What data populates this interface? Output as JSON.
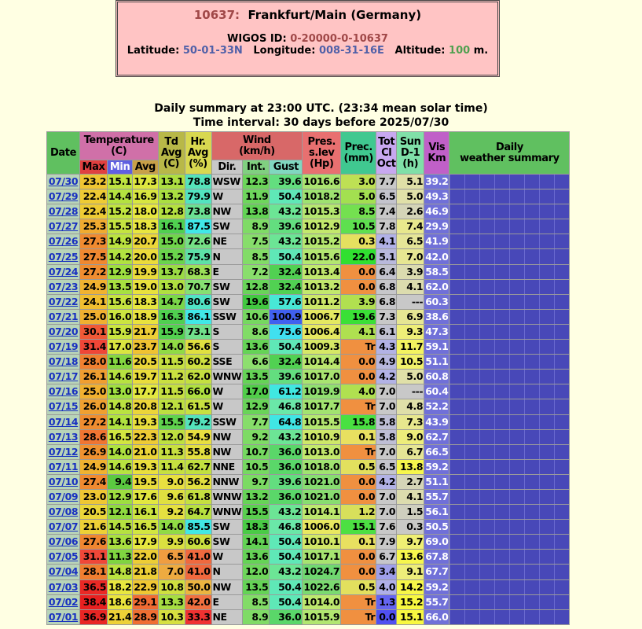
{
  "header": {
    "station_id": "10637:",
    "station_name": "Frankfurt/Main (Germany)",
    "wigos_label": "WIGOS ID:",
    "wigos_id": "0-20000-0-10637",
    "lat_label": "Latitude:",
    "lat": "50-01-33N",
    "lon_label": "Longitude:",
    "lon": "008-31-16E",
    "alt_label": "Altitude:",
    "alt": "100",
    "alt_unit": "m."
  },
  "summary": {
    "line1": "Daily summary at 23:00 UTC. (23:34 mean solar time)",
    "line2": "Time interval: 30 days before 2025/07/30"
  },
  "table": {
    "headers": {
      "date": "Date",
      "temperature": "Temperature\n(C)",
      "max": "Max",
      "min": "Min",
      "avg": "Avg",
      "td": "Td\nAvg\n(C)",
      "hr": "Hr.\nAvg\n(%)",
      "wind": "Wind\n(km/h)",
      "dir": "Dir.",
      "int": "Int.",
      "gust": "Gust",
      "pres": "Pres.\ns.lev\n(Hp)",
      "prec": "Prec.\n(mm)",
      "cloud": "Tot\nCl\nOct",
      "sun": "Sun\nD-1\n(h)",
      "vis": "Vis\nKm",
      "weather": "Daily\nweather summary"
    },
    "rows": [
      [
        "07/30",
        "23.2",
        "15.1",
        "17.3",
        "13.1",
        "78.8",
        "WSW",
        "12.3",
        "39.6",
        "1016.6",
        "3.0",
        "7.7",
        "5.1",
        "39.2"
      ],
      [
        "07/29",
        "22.4",
        "14.4",
        "16.9",
        "13.2",
        "79.9",
        "W",
        "11.9",
        "50.4",
        "1018.2",
        "5.0",
        "6.5",
        "5.0",
        "49.3"
      ],
      [
        "07/28",
        "22.4",
        "15.2",
        "18.0",
        "12.8",
        "73.8",
        "NW",
        "13.8",
        "43.2",
        "1015.3",
        "8.5",
        "7.4",
        "2.6",
        "46.9"
      ],
      [
        "07/27",
        "25.3",
        "15.5",
        "18.3",
        "16.1",
        "87.5",
        "SW",
        "8.9",
        "39.6",
        "1012.9",
        "10.5",
        "7.8",
        "7.4",
        "29.9"
      ],
      [
        "07/26",
        "27.3",
        "14.9",
        "20.7",
        "15.0",
        "72.6",
        "NE",
        "7.5",
        "43.2",
        "1015.2",
        "0.3",
        "4.1",
        "6.5",
        "41.9"
      ],
      [
        "07/25",
        "27.5",
        "14.2",
        "20.0",
        "15.2",
        "75.9",
        "N",
        "8.5",
        "50.4",
        "1015.6",
        "22.0",
        "5.1",
        "7.0",
        "42.0"
      ],
      [
        "07/24",
        "27.2",
        "12.9",
        "19.9",
        "13.7",
        "68.3",
        "E",
        "7.2",
        "32.4",
        "1013.4",
        "0.0",
        "6.4",
        "3.9",
        "58.5"
      ],
      [
        "07/23",
        "24.9",
        "13.5",
        "19.0",
        "13.0",
        "70.7",
        "SW",
        "12.8",
        "32.4",
        "1013.2",
        "0.0",
        "6.8",
        "4.1",
        "62.0"
      ],
      [
        "07/22",
        "24.1",
        "15.6",
        "18.3",
        "14.7",
        "80.6",
        "SW",
        "19.6",
        "57.6",
        "1011.2",
        "3.9",
        "6.8",
        "---",
        "60.3"
      ],
      [
        "07/21",
        "25.0",
        "16.0",
        "18.9",
        "16.3",
        "86.1",
        "SSW",
        "10.6",
        "100.9",
        "1006.7",
        "19.6",
        "7.3",
        "6.9",
        "38.6"
      ],
      [
        "07/20",
        "30.1",
        "15.9",
        "21.7",
        "15.9",
        "73.1",
        "S",
        "8.6",
        "75.6",
        "1006.4",
        "4.1",
        "6.1",
        "9.3",
        "47.3"
      ],
      [
        "07/19",
        "31.4",
        "17.0",
        "23.7",
        "14.0",
        "56.6",
        "S",
        "13.6",
        "50.4",
        "1009.3",
        "Tr",
        "4.3",
        "11.7",
        "59.1"
      ],
      [
        "07/18",
        "28.0",
        "11.6",
        "20.5",
        "11.5",
        "60.2",
        "SSE",
        "6.6",
        "32.4",
        "1014.4",
        "0.0",
        "4.9",
        "10.5",
        "51.1"
      ],
      [
        "07/17",
        "26.1",
        "14.6",
        "19.7",
        "11.2",
        "62.0",
        "WNW",
        "13.5",
        "39.6",
        "1017.0",
        "0.0",
        "4.2",
        "5.0",
        "60.8"
      ],
      [
        "07/16",
        "25.0",
        "13.0",
        "17.7",
        "11.5",
        "66.0",
        "W",
        "17.0",
        "61.2",
        "1019.9",
        "4.0",
        "7.0",
        "---",
        "60.4"
      ],
      [
        "07/15",
        "26.0",
        "14.8",
        "20.8",
        "12.1",
        "61.5",
        "W",
        "12.9",
        "46.8",
        "1017.7",
        "Tr",
        "7.0",
        "4.8",
        "52.2"
      ],
      [
        "07/14",
        "27.2",
        "14.1",
        "19.3",
        "15.5",
        "79.2",
        "SSW",
        "7.7",
        "64.8",
        "1015.5",
        "15.8",
        "5.8",
        "7.3",
        "43.9"
      ],
      [
        "07/13",
        "28.6",
        "16.5",
        "22.3",
        "12.0",
        "54.9",
        "NW",
        "9.2",
        "43.2",
        "1010.9",
        "0.1",
        "5.8",
        "9.0",
        "62.7"
      ],
      [
        "07/12",
        "26.9",
        "14.0",
        "21.0",
        "11.3",
        "55.8",
        "NW",
        "10.7",
        "36.0",
        "1013.0",
        "Tr",
        "7.0",
        "6.7",
        "66.5"
      ],
      [
        "07/11",
        "24.9",
        "14.6",
        "19.3",
        "11.4",
        "62.7",
        "NNE",
        "10.5",
        "36.0",
        "1018.0",
        "0.5",
        "6.5",
        "13.8",
        "59.2"
      ],
      [
        "07/10",
        "27.4",
        "9.4",
        "19.5",
        "9.0",
        "56.2",
        "NNW",
        "9.7",
        "39.6",
        "1021.0",
        "0.0",
        "4.2",
        "2.7",
        "51.1"
      ],
      [
        "07/09",
        "23.0",
        "12.9",
        "17.6",
        "9.6",
        "61.8",
        "WNW",
        "13.2",
        "36.0",
        "1021.0",
        "0.0",
        "7.0",
        "4.1",
        "55.7"
      ],
      [
        "07/08",
        "20.5",
        "12.1",
        "16.1",
        "9.2",
        "64.7",
        "WNW",
        "15.5",
        "43.2",
        "1014.1",
        "1.2",
        "7.0",
        "1.5",
        "56.1"
      ],
      [
        "07/07",
        "21.6",
        "14.5",
        "16.5",
        "14.0",
        "85.5",
        "SW",
        "18.3",
        "46.8",
        "1006.0",
        "15.1",
        "7.6",
        "0.3",
        "50.5"
      ],
      [
        "07/06",
        "27.6",
        "13.6",
        "17.9",
        "9.9",
        "60.6",
        "SW",
        "14.1",
        "50.4",
        "1010.1",
        "0.1",
        "7.9",
        "9.7",
        "69.0"
      ],
      [
        "07/05",
        "31.1",
        "11.3",
        "22.0",
        "6.5",
        "41.0",
        "W",
        "13.6",
        "50.4",
        "1017.1",
        "0.0",
        "6.7",
        "13.6",
        "67.8"
      ],
      [
        "07/04",
        "28.1",
        "14.8",
        "21.8",
        "7.0",
        "41.0",
        "N",
        "12.0",
        "43.2",
        "1024.7",
        "0.0",
        "3.4",
        "9.1",
        "67.7"
      ],
      [
        "07/03",
        "36.5",
        "18.2",
        "22.9",
        "10.8",
        "50.0",
        "NW",
        "13.5",
        "50.4",
        "1022.6",
        "0.5",
        "4.0",
        "14.2",
        "59.2"
      ],
      [
        "07/02",
        "38.4",
        "18.6",
        "29.1",
        "13.3",
        "42.0",
        "E",
        "8.5",
        "50.4",
        "1014.0",
        "Tr",
        "1.3",
        "15.2",
        "55.7"
      ],
      [
        "07/01",
        "36.9",
        "21.4",
        "28.9",
        "10.3",
        "33.3",
        "NE",
        "8.9",
        "36.0",
        "1015.9",
        "Tr",
        "0.0",
        "15.1",
        "66.0"
      ]
    ]
  }
}
